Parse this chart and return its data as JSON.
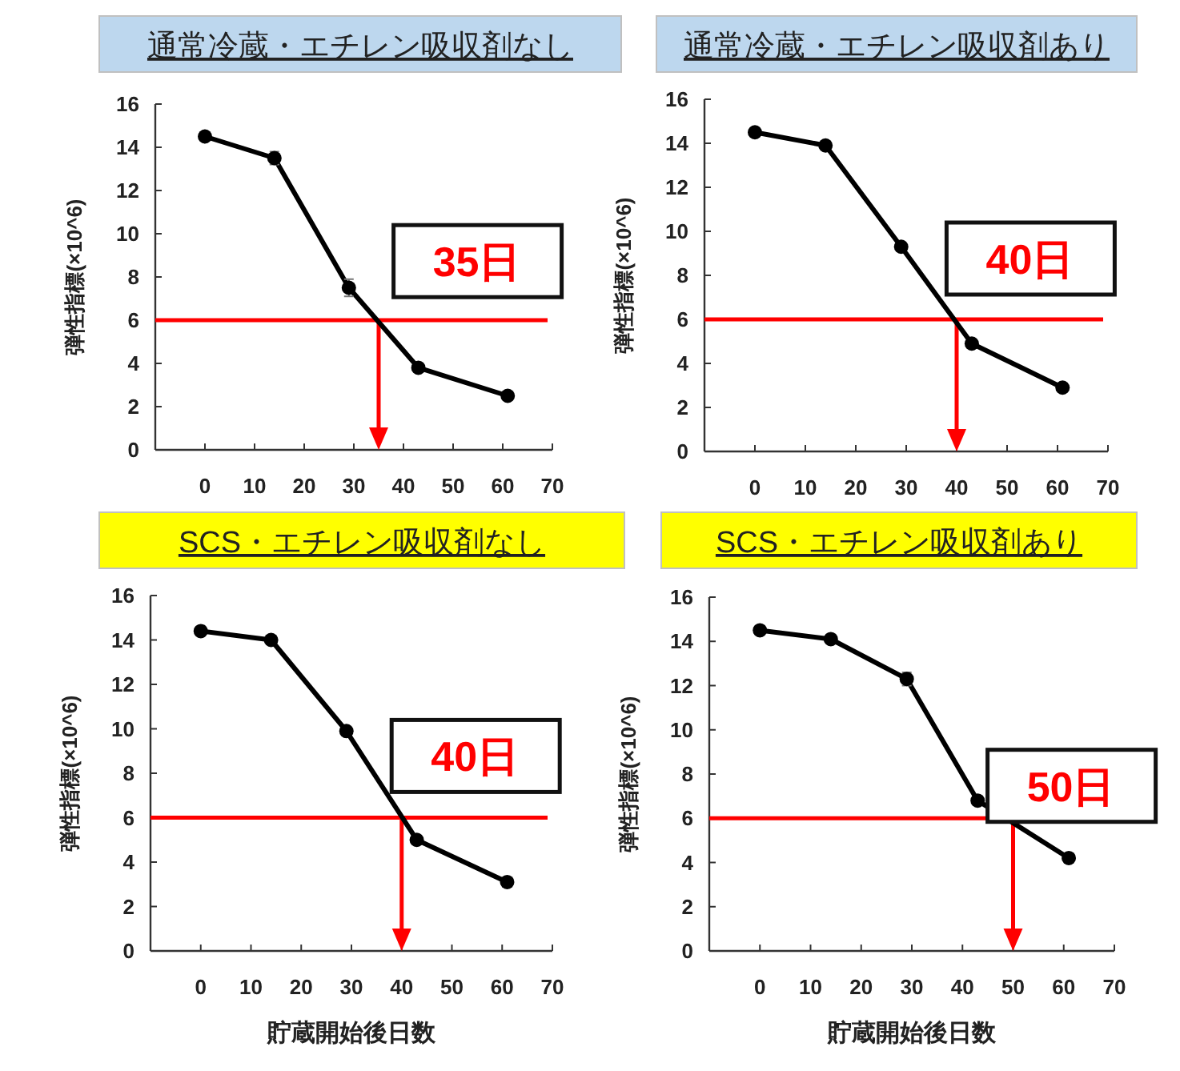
{
  "chart_data": [
    {
      "type": "line",
      "title": "通常冷蔵・エチレン吸収剤なし",
      "ylabel": "弾性指標(×10^6)",
      "x": [
        0,
        14,
        29,
        43,
        61
      ],
      "series": [
        {
          "color": "#000000",
          "values": [
            14.5,
            13.5,
            7.5,
            3.8,
            2.5
          ],
          "errors": [
            null,
            0.3,
            0.4,
            null,
            null
          ]
        }
      ],
      "xlim": [
        -10,
        70
      ],
      "ylim": [
        0,
        16
      ],
      "xticks": [
        0,
        10,
        20,
        30,
        40,
        50,
        60,
        70
      ],
      "yticks": [
        0,
        2,
        4,
        6,
        8,
        10,
        12,
        14,
        16
      ],
      "marker": "circle",
      "ref_lines": [
        {
          "axis": "y",
          "value": 6,
          "color": "#ff0000"
        },
        {
          "axis": "x",
          "value": 35,
          "color": "#ff0000"
        }
      ],
      "annotations": [
        "35日"
      ]
    },
    {
      "type": "line",
      "title": "通常冷蔵・エチレン吸収剤あり",
      "ylabel": "弾性指標(×10^6)",
      "x": [
        0,
        14,
        29,
        43,
        61
      ],
      "series": [
        {
          "color": "#000000",
          "values": [
            14.5,
            13.9,
            9.3,
            4.9,
            2.9
          ]
        }
      ],
      "xlim": [
        -10,
        70
      ],
      "ylim": [
        0,
        16
      ],
      "xticks": [
        0,
        10,
        20,
        30,
        40,
        50,
        60,
        70
      ],
      "yticks": [
        0,
        2,
        4,
        6,
        8,
        10,
        12,
        14,
        16
      ],
      "marker": "circle",
      "ref_lines": [
        {
          "axis": "y",
          "value": 6,
          "color": "#ff0000"
        },
        {
          "axis": "x",
          "value": 40,
          "color": "#ff0000"
        }
      ],
      "annotations": [
        "40日"
      ]
    },
    {
      "type": "line",
      "title": "SCS・エチレン吸収剤なし",
      "ylabel": "弾性指標(×10^6)",
      "xlabel": "貯蔵開始後日数",
      "x": [
        0,
        14,
        29,
        43,
        61
      ],
      "series": [
        {
          "color": "#000000",
          "values": [
            14.4,
            14.0,
            9.9,
            5.0,
            3.1
          ]
        }
      ],
      "xlim": [
        -10,
        70
      ],
      "ylim": [
        0,
        16
      ],
      "xticks": [
        0,
        10,
        20,
        30,
        40,
        50,
        60,
        70
      ],
      "yticks": [
        0,
        2,
        4,
        6,
        8,
        10,
        12,
        14,
        16
      ],
      "marker": "circle",
      "ref_lines": [
        {
          "axis": "y",
          "value": 6,
          "color": "#ff0000"
        },
        {
          "axis": "x",
          "value": 40,
          "color": "#ff0000"
        }
      ],
      "annotations": [
        "40日"
      ]
    },
    {
      "type": "line",
      "title": "SCS・エチレン吸収剤あり",
      "ylabel": "弾性指標(×10^6)",
      "xlabel": "貯蔵開始後日数",
      "x": [
        0,
        14,
        29,
        43,
        61
      ],
      "series": [
        {
          "color": "#000000",
          "values": [
            14.5,
            14.1,
            12.3,
            6.8,
            4.2
          ],
          "errors": [
            null,
            null,
            0.3,
            null,
            null
          ]
        }
      ],
      "xlim": [
        -10,
        70
      ],
      "ylim": [
        0,
        16
      ],
      "xticks": [
        0,
        10,
        20,
        30,
        40,
        50,
        60,
        70
      ],
      "yticks": [
        0,
        2,
        4,
        6,
        8,
        10,
        12,
        14,
        16
      ],
      "marker": "circle",
      "ref_lines": [
        {
          "axis": "y",
          "value": 6,
          "color": "#ff0000"
        },
        {
          "axis": "x",
          "value": 50,
          "color": "#ff0000"
        }
      ],
      "annotations": [
        "50日"
      ]
    }
  ]
}
